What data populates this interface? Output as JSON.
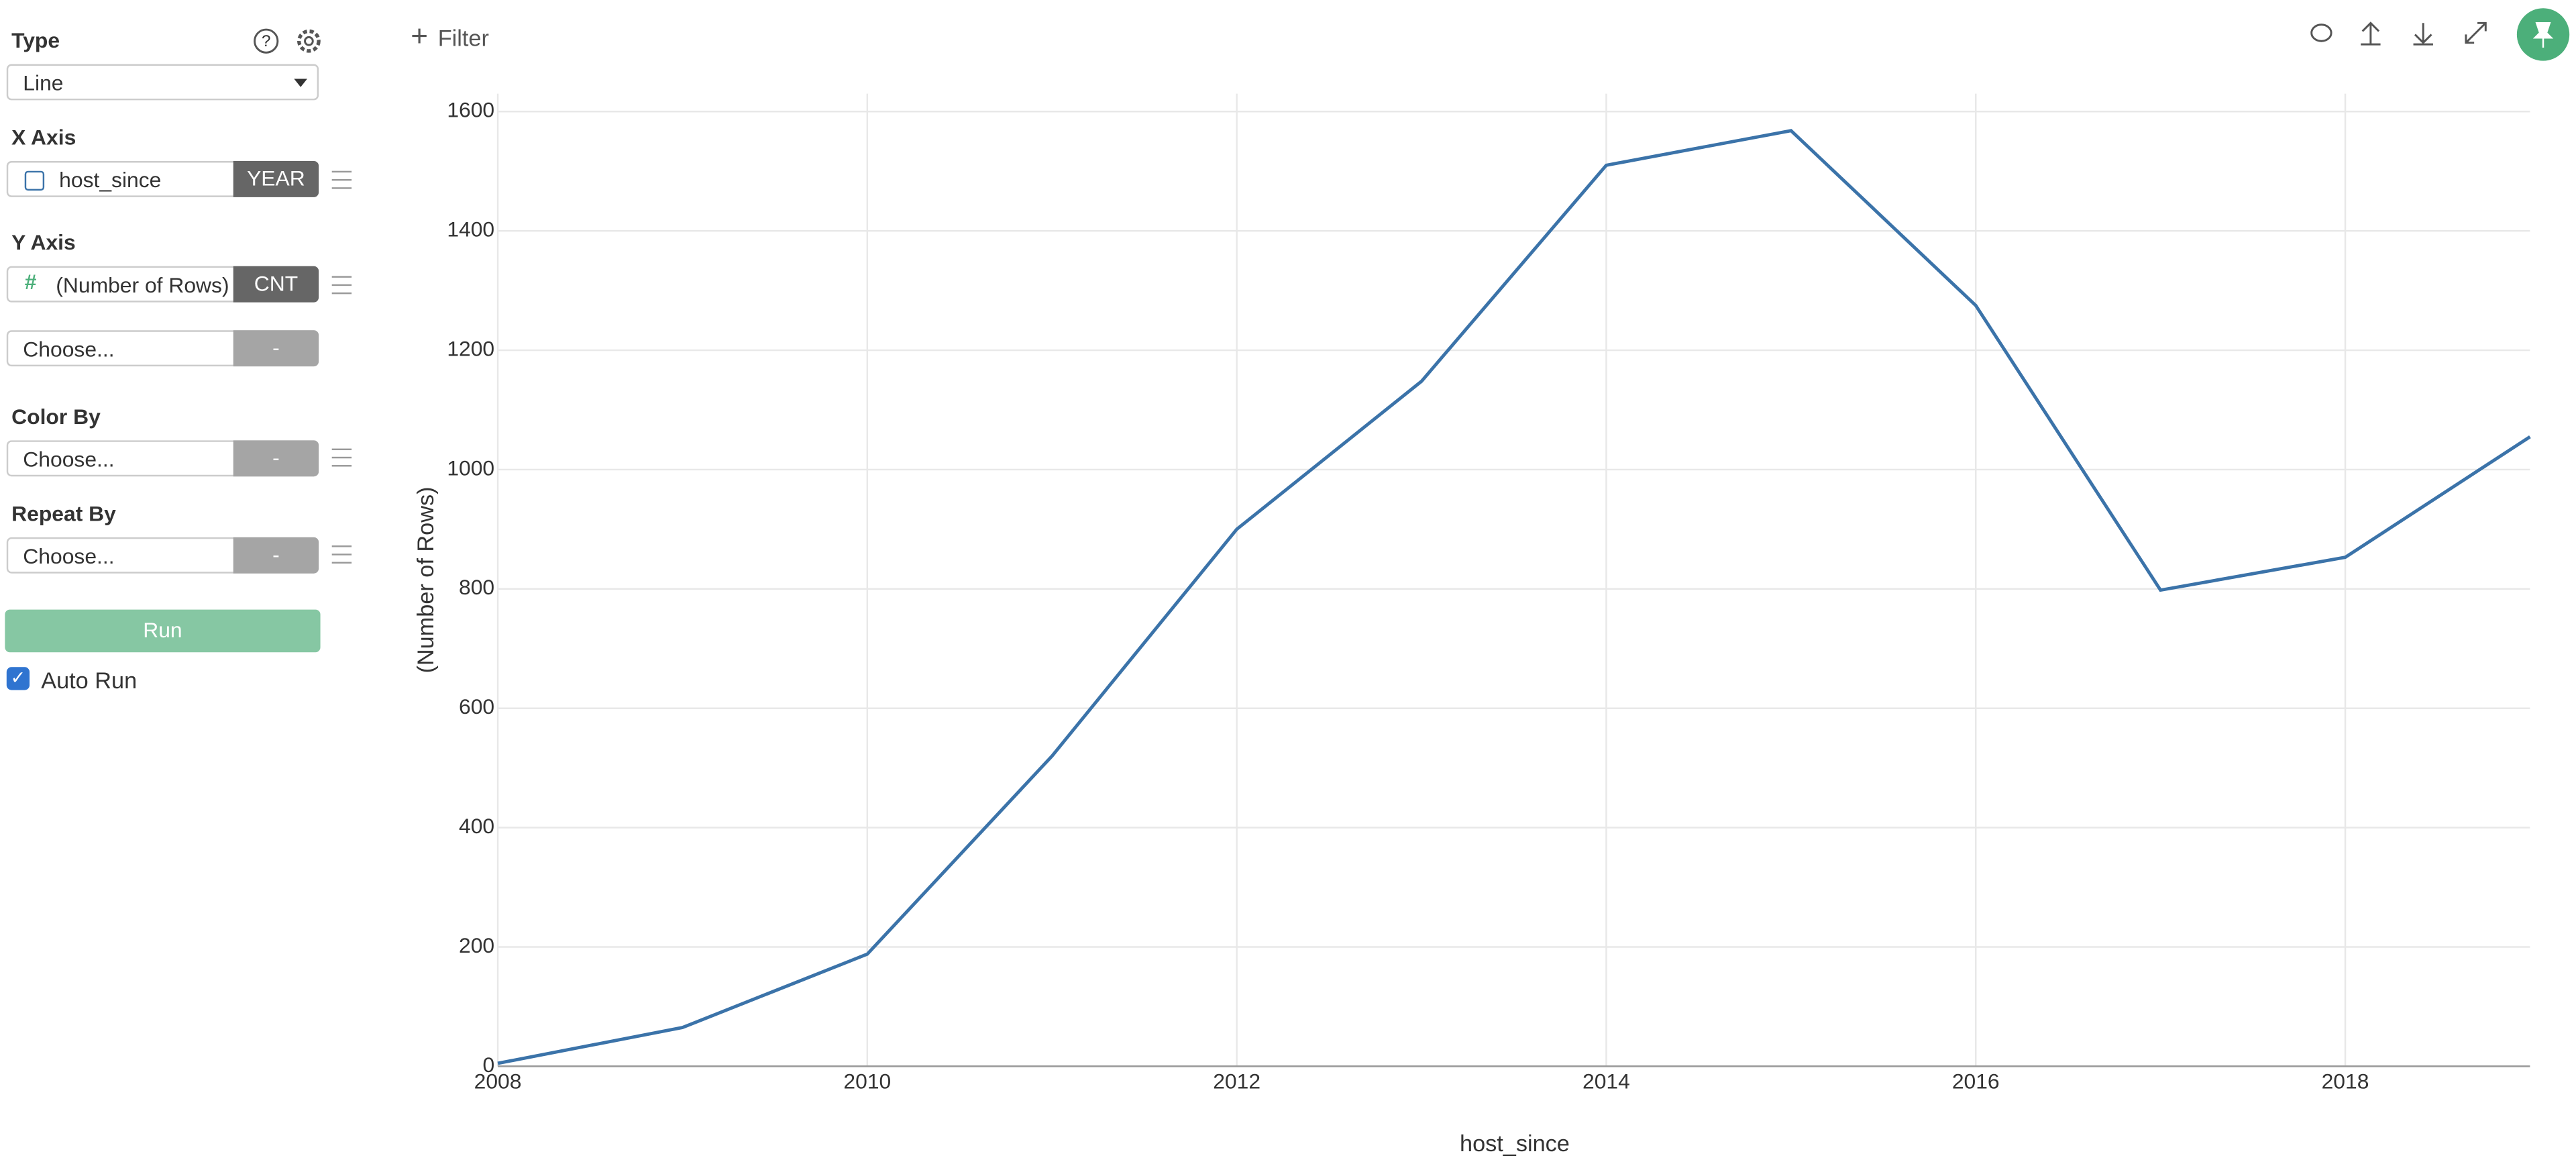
{
  "ui": {
    "filter": "Filter",
    "type_label": "Type",
    "type_value": "Line",
    "x_axis_label": "X Axis",
    "x_axis_field": "host_since",
    "x_axis_agg": "YEAR",
    "y_axis_label": "Y Axis",
    "y_axis_field": "(Number of Rows)",
    "y_axis_agg": "CNT",
    "y_axis2_field": "Choose...",
    "y_axis2_agg": "-",
    "color_by_label": "Color By",
    "color_by_field": "Choose...",
    "color_by_agg": "-",
    "repeat_by_label": "Repeat By",
    "repeat_by_field": "Choose...",
    "repeat_by_agg": "-",
    "run": "Run",
    "auto_run": "Auto Run"
  },
  "chart_data": {
    "type": "line",
    "x_label": "host_since",
    "y_label": "(Number of Rows)",
    "x": [
      2008,
      2009,
      2010,
      2011,
      2012,
      2013,
      2014,
      2015,
      2016,
      2017,
      2018,
      2019
    ],
    "values": [
      5,
      65,
      188,
      520,
      900,
      1148,
      1510,
      1568,
      1275,
      798,
      853,
      1055
    ],
    "color": "#3b73a9",
    "xlim": [
      2008,
      2019
    ],
    "xticks": [
      2008,
      2010,
      2012,
      2014,
      2016,
      2018
    ],
    "ylim": [
      0,
      1630
    ],
    "yticks": [
      0,
      200,
      400,
      600,
      800,
      1000,
      1200,
      1400,
      1600
    ],
    "grid": true
  }
}
